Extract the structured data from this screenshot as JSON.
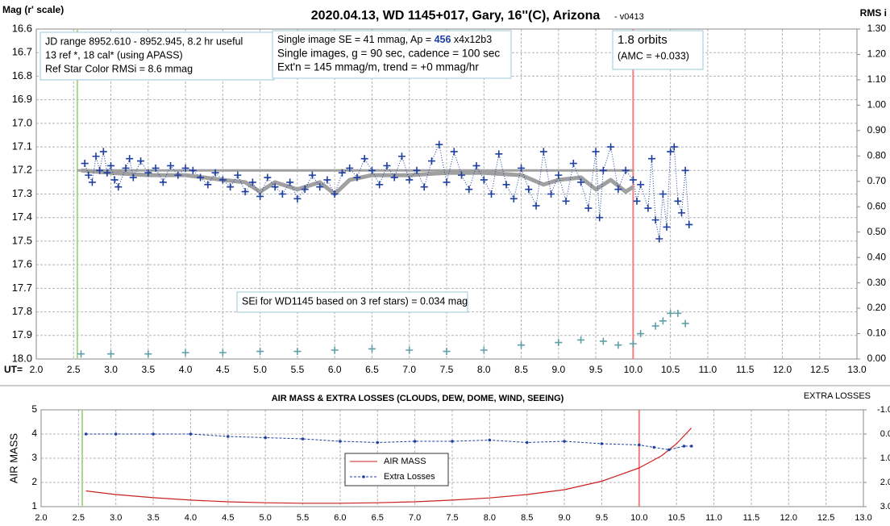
{
  "chart_data": [
    {
      "type": "scatter",
      "title": "2020.04.13, WD 1145+017, Gary, 16''(C), Arizona",
      "subtitle": "- v0413",
      "x_label": "UT=",
      "y_label": "Mag (r' scale)",
      "y2_label": "RMS i",
      "grid": true,
      "xlim": [
        2.0,
        13.0
      ],
      "ylim": [
        18.0,
        16.6
      ],
      "y2lim": [
        0.0,
        1.3
      ],
      "xticks": [
        {
          "value": 2,
          "label": "2.0"
        },
        2.5,
        {
          "value": 3,
          "label": "3.0"
        },
        3.5,
        {
          "value": 4,
          "label": "4.0"
        },
        4.5,
        {
          "value": 5,
          "label": "5.0"
        },
        5.5,
        {
          "value": 6,
          "label": "6.0"
        },
        6.5,
        {
          "value": 7,
          "label": "7.0"
        },
        7.5,
        {
          "value": 8,
          "label": "8.0"
        },
        8.5,
        {
          "value": 9,
          "label": "9.0"
        },
        9.5,
        {
          "value": 10,
          "label": "10.0"
        },
        10.5,
        {
          "value": 11,
          "label": "11.0"
        },
        11.5,
        {
          "value": 12,
          "label": "12.0"
        },
        12.5,
        {
          "value": 13,
          "label": "13.0"
        }
      ],
      "yticks": [
        16.6,
        16.7,
        16.8,
        16.9,
        {
          "value": 17,
          "label": "17.0"
        },
        17.1,
        17.2,
        17.3,
        17.4,
        17.5,
        17.6,
        17.7,
        17.8,
        17.9,
        {
          "value": 18,
          "label": "18.0"
        }
      ],
      "y2ticks": [
        {
          "value": 1.3,
          "label": "1.30"
        },
        {
          "value": 1.2,
          "label": "1.20"
        },
        {
          "value": 1.1,
          "label": "1.10"
        },
        {
          "value": 1,
          "label": "1.00"
        },
        {
          "value": 0.9,
          "label": "0.90"
        },
        {
          "value": 0.8,
          "label": "0.80"
        },
        {
          "value": 0.7,
          "label": "0.70"
        },
        {
          "value": 0.6,
          "label": "0.60"
        },
        {
          "value": 0.5,
          "label": "0.50"
        },
        {
          "value": 0.4,
          "label": "0.40"
        },
        {
          "value": 0.3,
          "label": "0.30"
        },
        {
          "value": 0.2,
          "label": "0.20"
        },
        {
          "value": 0.1,
          "label": "0.10"
        },
        {
          "value": 0,
          "label": "0.00"
        }
      ],
      "vlines": [
        {
          "x": 2.55,
          "color": "#a8d88a"
        },
        {
          "x": 10.0,
          "color": "#f08080"
        }
      ],
      "annotations": [
        {
          "lines": [
            "JD range 8952.610 - 8952.945, 8.2 hr useful",
            "13 ref *, 18 cal* (using APASS)",
            "Ref Star Color RMSi = 8.6 mmag"
          ]
        },
        {
          "parts": [
            "Single image SE = 41 mmag, Ap = ",
            "456",
            " x4x12b3"
          ],
          "lines": [
            "Single images, g = 90 sec, cadence = 100 sec",
            "Ext'n = 145 mmag/m, trend = +0 mmag/hr"
          ]
        },
        {
          "lines": [
            "1.8 orbits",
            "(AMC = +0.033)"
          ]
        },
        {
          "lines": [
            "SEi for WD1145 based on 3 ref stars) = 0.034 mag"
          ]
        }
      ],
      "series": [
        {
          "color": "#a0a0a0",
          "style": "line",
          "width": 3,
          "x": [
            2.55,
            10.0
          ],
          "values": [
            17.2,
            17.2
          ]
        },
        {
          "color": "#a0a0a0",
          "style": "line",
          "width": 5,
          "x": [
            2.6,
            3.0,
            3.5,
            4.0,
            4.5,
            4.8,
            5.0,
            5.2,
            5.5,
            5.8,
            6.0,
            6.2,
            6.5,
            7.0,
            7.5,
            8.0,
            8.5,
            8.8,
            9.0,
            9.3,
            9.5,
            9.7,
            9.9,
            10.0
          ],
          "values": [
            17.2,
            17.21,
            17.22,
            17.22,
            17.24,
            17.25,
            17.29,
            17.25,
            17.28,
            17.25,
            17.3,
            17.24,
            17.22,
            17.22,
            17.21,
            17.21,
            17.22,
            17.26,
            17.24,
            17.23,
            17.28,
            17.24,
            17.29,
            17.27
          ]
        },
        {
          "color": "#1f3fa0",
          "style": "plus-dotted",
          "x": [
            2.65,
            2.7,
            2.75,
            2.8,
            2.85,
            2.9,
            2.95,
            3.0,
            3.05,
            3.1,
            3.2,
            3.25,
            3.3,
            3.4,
            3.5,
            3.6,
            3.7,
            3.8,
            3.9,
            4.0,
            4.1,
            4.2,
            4.3,
            4.4,
            4.5,
            4.6,
            4.7,
            4.8,
            4.9,
            5.0,
            5.1,
            5.2,
            5.3,
            5.4,
            5.5,
            5.6,
            5.7,
            5.8,
            5.9,
            6.0,
            6.1,
            6.2,
            6.3,
            6.4,
            6.5,
            6.6,
            6.7,
            6.8,
            6.9,
            7.0,
            7.1,
            7.2,
            7.3,
            7.4,
            7.5,
            7.6,
            7.7,
            7.8,
            7.9,
            8.0,
            8.1,
            8.2,
            8.3,
            8.4,
            8.5,
            8.6,
            8.7,
            8.8,
            8.9,
            9.0,
            9.1,
            9.2,
            9.3,
            9.4,
            9.5,
            9.55,
            9.6,
            9.7,
            9.8,
            9.9,
            10.0,
            10.05,
            10.1,
            10.2,
            10.25,
            10.3,
            10.35,
            10.4,
            10.45,
            10.5,
            10.55,
            10.6,
            10.65,
            10.7,
            10.75
          ],
          "values": [
            17.17,
            17.22,
            17.25,
            17.14,
            17.2,
            17.12,
            17.21,
            17.18,
            17.24,
            17.27,
            17.19,
            17.15,
            17.23,
            17.16,
            17.21,
            17.19,
            17.25,
            17.18,
            17.22,
            17.19,
            17.2,
            17.23,
            17.26,
            17.21,
            17.24,
            17.27,
            17.22,
            17.29,
            17.25,
            17.31,
            17.23,
            17.27,
            17.3,
            17.25,
            17.32,
            17.28,
            17.22,
            17.27,
            17.24,
            17.3,
            17.21,
            17.19,
            17.23,
            17.15,
            17.2,
            17.26,
            17.18,
            17.23,
            17.14,
            17.24,
            17.2,
            17.27,
            17.16,
            17.09,
            17.25,
            17.12,
            17.22,
            17.28,
            17.18,
            17.24,
            17.3,
            17.13,
            17.26,
            17.32,
            17.19,
            17.28,
            17.35,
            17.12,
            17.3,
            17.22,
            17.33,
            17.17,
            17.25,
            17.36,
            17.12,
            17.4,
            17.2,
            17.1,
            17.28,
            17.2,
            17.24,
            17.33,
            17.26,
            17.36,
            17.15,
            17.41,
            17.49,
            17.3,
            17.44,
            17.12,
            17.1,
            17.33,
            17.38,
            17.2,
            17.43
          ]
        },
        {
          "color": "#5fa0a8",
          "style": "plus",
          "axis": "y2",
          "x": [
            2.6,
            3.0,
            3.5,
            4.0,
            4.5,
            5.0,
            5.5,
            6.0,
            6.5,
            7.0,
            7.5,
            8.0,
            8.5,
            9.0,
            9.3,
            9.6,
            9.8,
            10.0,
            10.1,
            10.3,
            10.4,
            10.5,
            10.6,
            10.7
          ],
          "values": [
            0.02,
            0.02,
            0.02,
            0.025,
            0.025,
            0.03,
            0.03,
            0.035,
            0.04,
            0.035,
            0.03,
            0.035,
            0.055,
            0.065,
            0.075,
            0.07,
            0.055,
            0.06,
            0.1,
            0.13,
            0.15,
            0.18,
            0.18,
            0.14
          ]
        }
      ]
    },
    {
      "type": "line",
      "title": "AIR MASS & EXTRA LOSSES (CLOUDS, DEW, DOME, WIND, SEEING)",
      "y_label": "AIR MASS",
      "y2_label": "EXTRA LOSSES",
      "grid": true,
      "legend": "center",
      "xlim": [
        2.0,
        13.0
      ],
      "ylim": [
        1,
        5
      ],
      "y2lim": [
        3.0,
        -1.0
      ],
      "xticks": [
        {
          "value": 2,
          "label": "2.0"
        },
        2.5,
        {
          "value": 3,
          "label": "3.0"
        },
        3.5,
        {
          "value": 4,
          "label": "4.0"
        },
        4.5,
        {
          "value": 5,
          "label": "5.0"
        },
        5.5,
        {
          "value": 6,
          "label": "6.0"
        },
        6.5,
        {
          "value": 7,
          "label": "7.0"
        },
        7.5,
        {
          "value": 8,
          "label": "8.0"
        },
        8.5,
        {
          "value": 9,
          "label": "9.0"
        },
        9.5,
        {
          "value": 10,
          "label": "10.0"
        },
        10.5,
        {
          "value": 11,
          "label": "11.0"
        },
        11.5,
        {
          "value": 12,
          "label": "12.0"
        },
        12.5,
        {
          "value": 13,
          "label": "13.0"
        }
      ],
      "yticks": [
        1,
        2,
        3,
        4,
        5
      ],
      "y2ticks": [
        {
          "value": -1,
          "label": "-1.0"
        },
        {
          "value": 0,
          "label": "0.0"
        },
        {
          "value": 1,
          "label": "1.0"
        },
        {
          "value": 2,
          "label": "2.0"
        },
        {
          "value": 3,
          "label": "3.0"
        }
      ],
      "vlines": [
        {
          "x": 2.55,
          "color": "#a8d88a"
        },
        {
          "x": 10.0,
          "color": "#f08080"
        }
      ],
      "series": [
        {
          "name": "AIR MASS",
          "color": "#cc2020",
          "style": "line",
          "width": 1.2,
          "x": [
            2.6,
            3,
            3.5,
            4,
            4.5,
            5,
            5.5,
            6,
            6.5,
            7,
            7.5,
            8,
            8.5,
            9,
            9.5,
            10,
            10.3,
            10.5,
            10.7
          ],
          "values": [
            1.65,
            1.5,
            1.37,
            1.27,
            1.2,
            1.16,
            1.14,
            1.14,
            1.16,
            1.2,
            1.27,
            1.36,
            1.5,
            1.7,
            2.05,
            2.6,
            3.1,
            3.6,
            4.25
          ]
        },
        {
          "name": "Extra Losses",
          "color": "#1f3fa0",
          "style": "dot-dashed",
          "axis": "y2",
          "x": [
            2.6,
            3.0,
            3.5,
            4.0,
            4.5,
            5.0,
            5.5,
            6.0,
            6.5,
            7.0,
            7.5,
            8.0,
            8.5,
            9.0,
            9.5,
            10.0,
            10.2,
            10.4,
            10.6,
            10.7
          ],
          "values": [
            0.0,
            0.0,
            0.0,
            0.0,
            0.1,
            0.15,
            0.2,
            0.3,
            0.35,
            0.3,
            0.3,
            0.25,
            0.35,
            0.3,
            0.4,
            0.45,
            0.55,
            0.65,
            0.5,
            0.5
          ]
        }
      ]
    }
  ]
}
